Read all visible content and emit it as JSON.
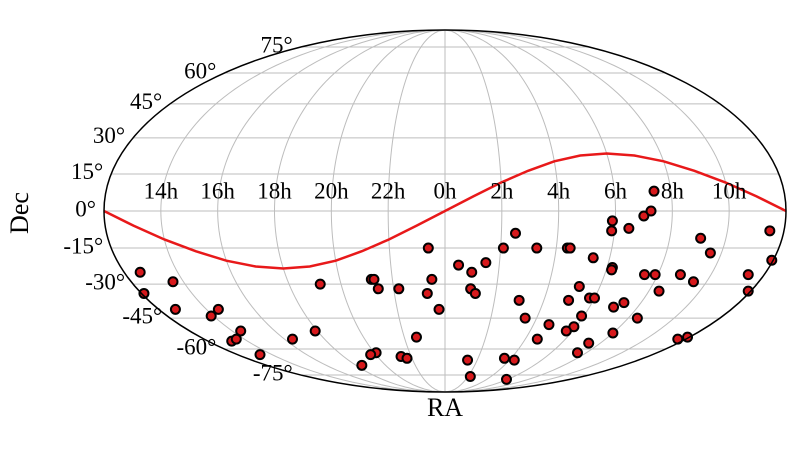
{
  "chart_data": {
    "type": "scatter",
    "projection": "mollweide",
    "x_label": "RA",
    "y_label": "Dec",
    "xlim": [
      -12,
      12
    ],
    "ylim": [
      -90,
      90
    ],
    "grid": true,
    "xticks": [
      {
        "value": -10,
        "label": "14h"
      },
      {
        "value": -8,
        "label": "16h"
      },
      {
        "value": -6,
        "label": "18h"
      },
      {
        "value": -4,
        "label": "20h"
      },
      {
        "value": -2,
        "label": "22h"
      },
      {
        "value": 0,
        "label": "0h"
      },
      {
        "value": 2,
        "label": "2h"
      },
      {
        "value": 4,
        "label": "4h"
      },
      {
        "value": 6,
        "label": "6h"
      },
      {
        "value": 8,
        "label": "8h"
      },
      {
        "value": 10,
        "label": "10h"
      }
    ],
    "yticks": [
      {
        "value": -75,
        "label": "-75°"
      },
      {
        "value": -60,
        "label": "-60°"
      },
      {
        "value": -45,
        "label": "-45°"
      },
      {
        "value": -30,
        "label": "-30°"
      },
      {
        "value": -15,
        "label": "-15°"
      },
      {
        "value": 0,
        "label": "0°"
      },
      {
        "value": 15,
        "label": "15°"
      },
      {
        "value": 30,
        "label": "30°"
      },
      {
        "value": 45,
        "label": "45°"
      },
      {
        "value": 60,
        "label": "60°"
      },
      {
        "value": 75,
        "label": "75°"
      }
    ],
    "series": [
      {
        "type": "line",
        "color": "#e8191a",
        "x": [
          -12,
          -11,
          -10,
          -9,
          -8,
          -7,
          -6,
          -5,
          -4,
          -3,
          -2,
          -1,
          0,
          1,
          2,
          3,
          4,
          5,
          6,
          7,
          8,
          9,
          10,
          11,
          12
        ],
        "y": [
          0,
          -5.9,
          -11.5,
          -16.3,
          -20.2,
          -22.6,
          -23.4,
          -22.6,
          -20.2,
          -16.3,
          -11.5,
          -5.9,
          0,
          5.9,
          11.5,
          16.3,
          20.2,
          22.6,
          23.4,
          22.6,
          20.2,
          16.3,
          11.5,
          5.9,
          0
        ]
      },
      {
        "type": "scatter",
        "color": "#d7191c",
        "x": [
          -11.4,
          -11.9,
          -10.4,
          -11.3,
          -10.1,
          -9.5,
          -10.8,
          -10.4,
          -9.6,
          -10.7,
          -7.6,
          -4.8,
          -6.1,
          -5.6,
          -2.8,
          -2.7,
          -2.6,
          -1.8,
          -3.9,
          -4.3,
          -2.6,
          -2.3,
          -1.4,
          -0.6,
          -0.5,
          -0.7,
          -0.25,
          0.5,
          1.0,
          1.0,
          1.2,
          1.5,
          2.1,
          2.5,
          3.0,
          3.5,
          3.3,
          4.7,
          4.4,
          4.5,
          5.0,
          5.2,
          5.9,
          5.9,
          5.7,
          7.5,
          4.6,
          3.6,
          4.3,
          1.4,
          2.2,
          5.9,
          5.8,
          6.0,
          7.4,
          5.4,
          5.9,
          5.9,
          6.2,
          6.2,
          7.0,
          8.0,
          7.3,
          6.5,
          8.4,
          7.0,
          7.25,
          7.4,
          7.5,
          7.9,
          8.4,
          11.6,
          11.9,
          8.85,
          9.5,
          9.1,
          9.6,
          11.4,
          11.9,
          11.5,
          11.95
        ],
        "y": [
          -25,
          -34,
          -29,
          -41,
          -44,
          -41,
          -56,
          -55,
          -51,
          -63,
          -55,
          -30,
          -51,
          -69,
          -28,
          -28,
          -32,
          -32,
          -62,
          -63,
          -64,
          -65,
          -54,
          -15,
          -28,
          -34,
          -41,
          -22,
          -25,
          -32,
          -34,
          -21,
          -15,
          -9,
          -37,
          -45,
          -15,
          -48,
          -15,
          -15,
          -37,
          -31,
          -44,
          -49,
          -51,
          -62,
          -55,
          -65,
          -66,
          -66,
          -76,
          -78,
          -36,
          -36,
          -57,
          -19,
          -4,
          -8,
          -23,
          -24,
          -40,
          -52,
          -38,
          -7,
          -45,
          -2,
          0,
          8,
          -26,
          -26,
          -33,
          -55,
          -54,
          -26,
          -29,
          -11,
          -17,
          -26,
          -33,
          -8,
          -20
        ]
      }
    ]
  }
}
